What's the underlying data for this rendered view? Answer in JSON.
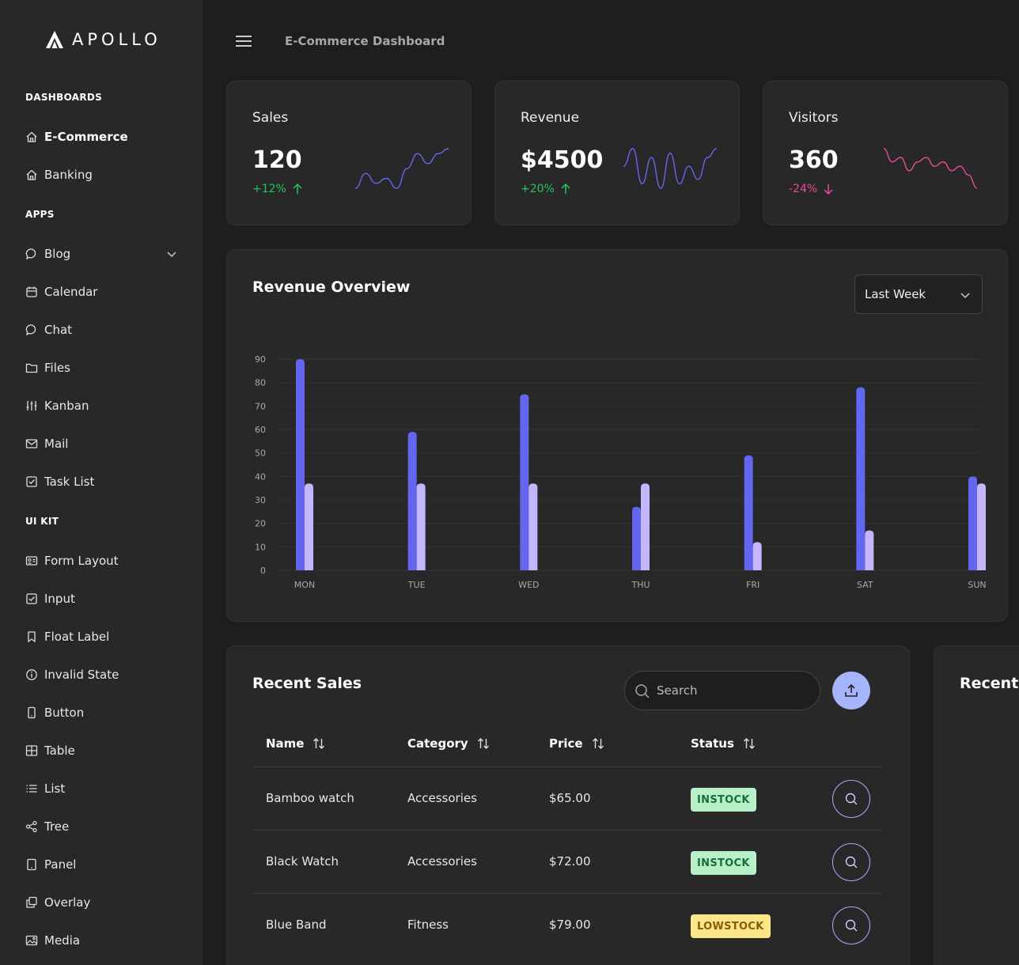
{
  "brand": {
    "name": "APOLLO"
  },
  "header": {
    "title": "E-Commerce Dashboard"
  },
  "sidebar": {
    "sections": [
      {
        "title": "DASHBOARDS",
        "items": [
          {
            "label": "E-Commerce",
            "icon": "home-icon",
            "active": true
          },
          {
            "label": "Banking",
            "icon": "home-icon"
          }
        ]
      },
      {
        "title": "APPS",
        "items": [
          {
            "label": "Blog",
            "icon": "comment-icon",
            "expandable": true
          },
          {
            "label": "Calendar",
            "icon": "calendar-icon"
          },
          {
            "label": "Chat",
            "icon": "comment-icon"
          },
          {
            "label": "Files",
            "icon": "folder-icon"
          },
          {
            "label": "Kanban",
            "icon": "sliders-icon"
          },
          {
            "label": "Mail",
            "icon": "envelope-icon"
          },
          {
            "label": "Task List",
            "icon": "check-square-icon"
          }
        ]
      },
      {
        "title": "UI KIT",
        "items": [
          {
            "label": "Form Layout",
            "icon": "id-card-icon"
          },
          {
            "label": "Input",
            "icon": "check-square-icon"
          },
          {
            "label": "Float Label",
            "icon": "bookmark-icon"
          },
          {
            "label": "Invalid State",
            "icon": "info-circle-icon"
          },
          {
            "label": "Button",
            "icon": "mobile-icon"
          },
          {
            "label": "Table",
            "icon": "table-icon"
          },
          {
            "label": "List",
            "icon": "list-icon"
          },
          {
            "label": "Tree",
            "icon": "share-icon"
          },
          {
            "label": "Panel",
            "icon": "tablet-icon"
          },
          {
            "label": "Overlay",
            "icon": "clone-icon"
          },
          {
            "label": "Media",
            "icon": "image-icon"
          }
        ]
      }
    ]
  },
  "stats": [
    {
      "title": "Sales",
      "value": "120",
      "change": "+12%",
      "trend": "up",
      "color": "#22c55e",
      "spark_color": "#6366f1",
      "spark": [
        2,
        5,
        3,
        4,
        2,
        6,
        9,
        7,
        9,
        10
      ]
    },
    {
      "title": "Revenue",
      "value": "$4500",
      "change": "+20%",
      "trend": "up",
      "color": "#22c55e",
      "spark_color": "#6366f1",
      "spark": [
        6,
        10,
        2,
        8,
        1,
        9,
        2,
        6,
        3,
        8,
        10
      ]
    },
    {
      "title": "Visitors",
      "value": "360",
      "change": "-24%",
      "trend": "down",
      "color": "#ec4899",
      "spark_color": "#ec4899",
      "spark": [
        10,
        7,
        8,
        5,
        7,
        8,
        6,
        7,
        5,
        6,
        4,
        1
      ]
    }
  ],
  "overview": {
    "title": "Revenue Overview",
    "period": "Last Week"
  },
  "chart_data": {
    "type": "bar",
    "categories": [
      "MON",
      "TUE",
      "WED",
      "THU",
      "FRI",
      "SAT",
      "SUN"
    ],
    "series": [
      {
        "values": [
          90,
          59,
          75,
          27,
          49,
          78,
          40
        ],
        "color": "#6366f1"
      },
      {
        "values": [
          37,
          37,
          37,
          37,
          12,
          17,
          37
        ],
        "color": "#c4b5fd"
      }
    ],
    "ylim": [
      0,
      90
    ],
    "yticks": [
      0,
      10,
      20,
      30,
      40,
      50,
      60,
      70,
      80,
      90
    ],
    "grid": true
  },
  "recent_sales": {
    "title": "Recent Sales",
    "search_placeholder": "Search",
    "columns": [
      "Name",
      "Category",
      "Price",
      "Status"
    ],
    "rows": [
      {
        "name": "Bamboo watch",
        "category": "Accessories",
        "price": "$65.00",
        "status": "INSTOCK"
      },
      {
        "name": "Black Watch",
        "category": "Accessories",
        "price": "$72.00",
        "status": "INSTOCK"
      },
      {
        "name": "Blue Band",
        "category": "Fitness",
        "price": "$79.00",
        "status": "LOWSTOCK"
      }
    ]
  },
  "recent_panel": {
    "title": "Recent"
  }
}
